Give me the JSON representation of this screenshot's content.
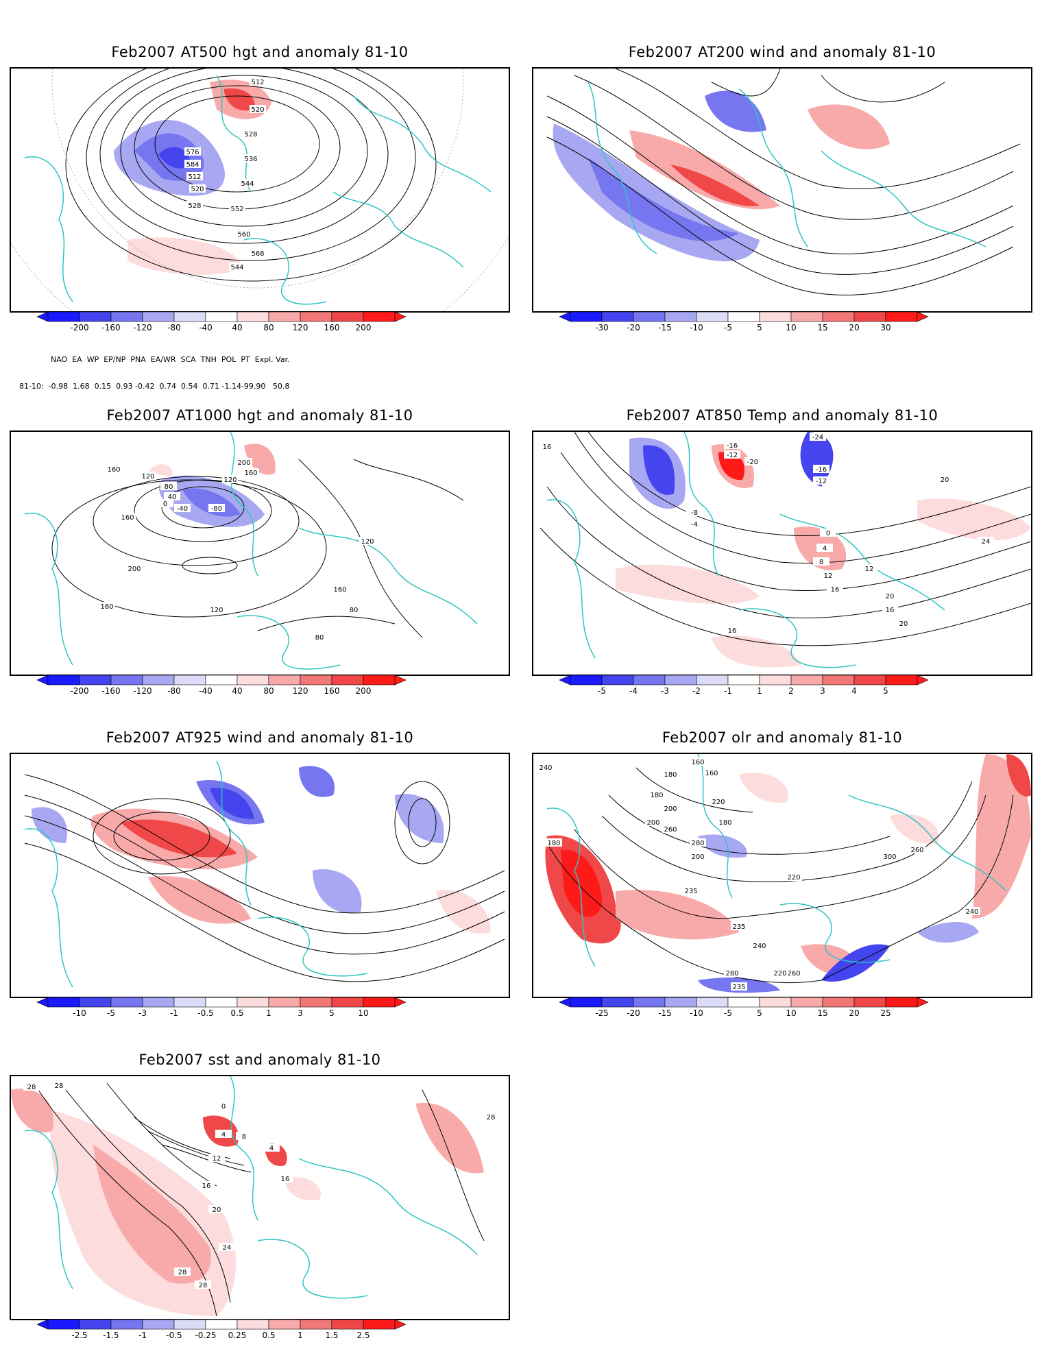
{
  "panels": [
    {
      "id": "p1",
      "title": "Feb2007 AT500 hgt and anomaly 81-10",
      "colorbar": [
        "-200",
        "-160",
        "-120",
        "-80",
        "-40",
        "40",
        "80",
        "120",
        "160",
        "200"
      ],
      "contour_labels": [
        "512",
        "520",
        "528",
        "536",
        "544",
        "552",
        "560",
        "568",
        "576",
        "584",
        "512",
        "520",
        "528",
        "544"
      ]
    },
    {
      "id": "p2",
      "title": "Feb2007 AT200 wind and anomaly 81-10",
      "colorbar": [
        "-30",
        "-20",
        "-15",
        "-10",
        "-5",
        "5",
        "10",
        "15",
        "20",
        "30"
      ],
      "contour_labels": []
    },
    {
      "id": "p3",
      "title": "Feb2007 AT1000 hgt and anomaly 81-10",
      "colorbar": [
        "-200",
        "-160",
        "-120",
        "-80",
        "-40",
        "40",
        "80",
        "120",
        "160",
        "200"
      ],
      "contour_labels": [
        "160",
        "120",
        "80",
        "40",
        "0",
        "-40",
        "-80",
        "200",
        "160",
        "120",
        "160",
        "200",
        "160",
        "120",
        "80",
        "80",
        "120",
        "160"
      ]
    },
    {
      "id": "p4",
      "title": "Feb2007 AT850 Temp and anomaly 81-10",
      "colorbar": [
        "-5",
        "-4",
        "-3",
        "-2",
        "-1",
        "1",
        "2",
        "3",
        "4",
        "5"
      ],
      "contour_labels": [
        "16",
        "-16",
        "-12",
        "-20",
        "-24",
        "-16",
        "-12",
        "-8",
        "-4",
        "0",
        "4",
        "8",
        "12",
        "16",
        "20",
        "24",
        "20",
        "12",
        "16",
        "20",
        "16"
      ]
    },
    {
      "id": "p5",
      "title": "Feb2007 AT925 wind and anomaly 81-10",
      "colorbar": [
        "-10",
        "-5",
        "-3",
        "-1",
        "-0.5",
        "0.5",
        "1",
        "3",
        "5",
        "10"
      ],
      "contour_labels": []
    },
    {
      "id": "p6",
      "title": "Feb2007 olr and anomaly 81-10",
      "colorbar": [
        "-25",
        "-20",
        "-15",
        "-10",
        "-5",
        "5",
        "10",
        "15",
        "20",
        "25"
      ],
      "contour_labels": [
        "240",
        "160",
        "180",
        "160",
        "180",
        "200",
        "220",
        "180",
        "200",
        "260",
        "280",
        "180",
        "200",
        "235",
        "220",
        "235",
        "240",
        "260",
        "280",
        "300",
        "260",
        "235",
        "220",
        "240"
      ]
    },
    {
      "id": "p7",
      "title": "Feb2007 sst and anomaly 81-10",
      "colorbar": [
        "-2.5",
        "-1.5",
        "-1",
        "-0.5",
        "-0.25",
        "0.25",
        "0.5",
        "1",
        "1.5",
        "2.5"
      ],
      "contour_labels": [
        "28",
        "28",
        "0",
        "4",
        "8",
        "12",
        "16",
        "20",
        "24",
        "28",
        "28",
        "16",
        "4",
        "28"
      ]
    }
  ],
  "teleconnections": {
    "headers": [
      "NAO",
      "EA",
      "WP",
      "EP/NP",
      "PNA",
      "EA/WR",
      "SCA",
      "TNH",
      "POL",
      "PT",
      "Expl. Var."
    ],
    "row_label": "81-10:",
    "values": "-0.98  1.68  0.15  0.93 -0.42  0.74  0.54  0.71 -1.14-99.90   50.8"
  },
  "colors": {
    "neg": [
      "#1a1aff",
      "#4545f0",
      "#7676f0",
      "#a8a8f2",
      "#dcdcf8"
    ],
    "pos": [
      "#fcdcdc",
      "#f8aaaa",
      "#f27878",
      "#f04848",
      "#ff1a1a"
    ],
    "coast": "#2ec4c4",
    "contour": "#000000"
  }
}
